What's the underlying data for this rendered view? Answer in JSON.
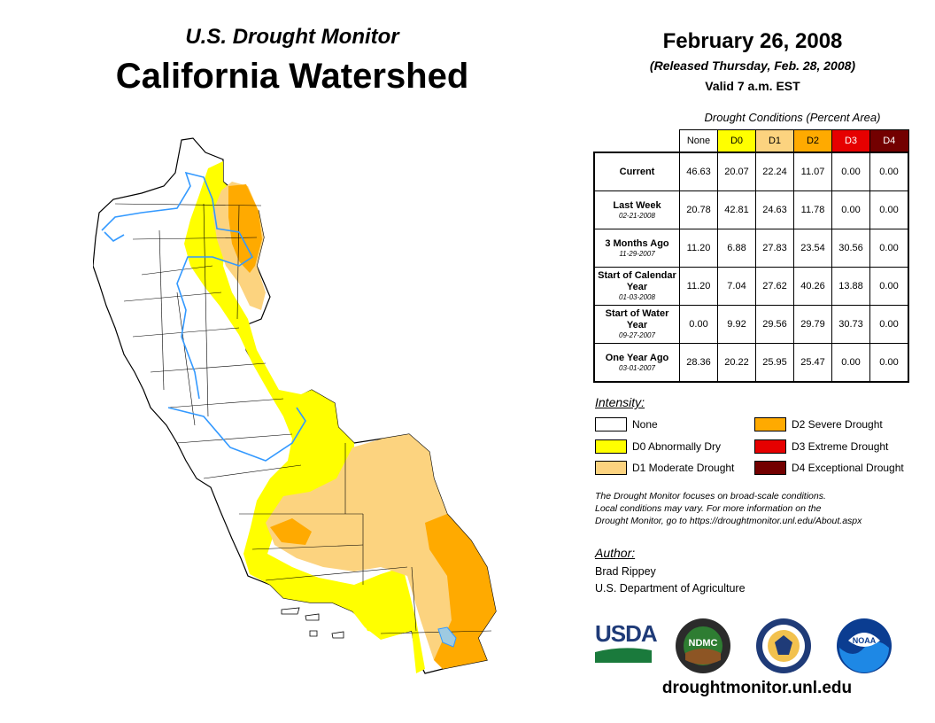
{
  "header": {
    "subtitle": "U.S. Drought Monitor",
    "title": "California Watershed",
    "date": "February 26, 2008",
    "released": "(Released Thursday, Feb. 28, 2008)",
    "valid": "Valid 7 a.m. EST"
  },
  "conditions_table": {
    "title": "Drought Conditions (Percent Area)",
    "columns": [
      "None",
      "D0",
      "D1",
      "D2",
      "D3",
      "D4"
    ],
    "column_colors": [
      "#ffffff",
      "#ffff00",
      "#fcd37f",
      "#ffaa00",
      "#e60000",
      "#730000"
    ],
    "rows": [
      {
        "label": "Current",
        "date": "",
        "values": [
          "46.63",
          "20.07",
          "22.24",
          "11.07",
          "0.00",
          "0.00"
        ]
      },
      {
        "label": "Last Week",
        "date": "02-21-2008",
        "values": [
          "20.78",
          "42.81",
          "24.63",
          "11.78",
          "0.00",
          "0.00"
        ]
      },
      {
        "label": "3 Months Ago",
        "date": "11-29-2007",
        "values": [
          "11.20",
          "6.88",
          "27.83",
          "23.54",
          "30.56",
          "0.00"
        ]
      },
      {
        "label": "Start of Calendar Year",
        "date": "01-03-2008",
        "values": [
          "11.20",
          "7.04",
          "27.62",
          "40.26",
          "13.88",
          "0.00"
        ]
      },
      {
        "label": "Start of Water Year",
        "date": "09-27-2007",
        "values": [
          "0.00",
          "9.92",
          "29.56",
          "29.79",
          "30.73",
          "0.00"
        ]
      },
      {
        "label": "One Year Ago",
        "date": "03-01-2007",
        "values": [
          "28.36",
          "20.22",
          "25.95",
          "25.47",
          "0.00",
          "0.00"
        ]
      }
    ]
  },
  "legend": {
    "heading": "Intensity:",
    "items": [
      {
        "label": "None",
        "color": "#ffffff"
      },
      {
        "label": "D0 Abnormally Dry",
        "color": "#ffff00"
      },
      {
        "label": "D1 Moderate Drought",
        "color": "#fcd37f"
      },
      {
        "label": "D2 Severe Drought",
        "color": "#ffaa00"
      },
      {
        "label": "D3 Extreme Drought",
        "color": "#e60000"
      },
      {
        "label": "D4 Exceptional Drought",
        "color": "#730000"
      }
    ]
  },
  "note": {
    "line1": "The Drought Monitor focuses on broad-scale conditions.",
    "line2": "Local conditions may vary. For more information on the",
    "line3": "Drought Monitor, go to https://droughtmonitor.unl.edu/About.aspx"
  },
  "author": {
    "heading": "Author:",
    "name": "Brad Rippey",
    "org": "U.S. Department of Agriculture"
  },
  "logos": {
    "usda": "USDA",
    "ndmc": "NDMC",
    "noaa": "NOAA"
  },
  "website": "droughtmonitor.unl.edu"
}
